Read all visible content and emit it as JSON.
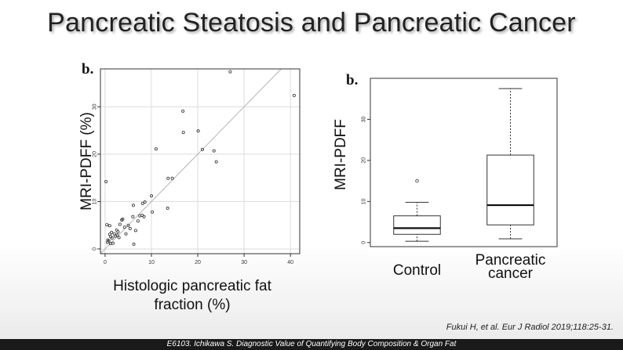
{
  "slide": {
    "title": "Pancreatic Steatosis and Pancreatic Cancer",
    "citation": "Fukui H, et al. Eur J Radiol 2019;118:25-31.",
    "footer": "E6103. Ichikawa S. Diagnostic Value of Quantifying  Body Composition & Organ Fat"
  },
  "chart_data": [
    {
      "type": "scatter",
      "panel_label": "b.",
      "xlabel": "Histologic pancreatic fat fraction (%)",
      "ylabel": "MRI-PDFF (%)",
      "xlim": [
        -1,
        42
      ],
      "ylim": [
        -1,
        38
      ],
      "xticks": [
        0,
        10,
        20,
        30,
        40
      ],
      "yticks": [
        0,
        10,
        20,
        30
      ],
      "grid": true,
      "identity_line": true,
      "points": [
        [
          0.2,
          14.2
        ],
        [
          0.4,
          5.1
        ],
        [
          0.6,
          1.9
        ],
        [
          0.5,
          1.4
        ],
        [
          0.8,
          1.7
        ],
        [
          1.0,
          4.9
        ],
        [
          1.0,
          3.1
        ],
        [
          1.2,
          2.6
        ],
        [
          1.2,
          1.1
        ],
        [
          1.4,
          3.5
        ],
        [
          1.5,
          2.3
        ],
        [
          1.7,
          1.2
        ],
        [
          2.0,
          3.2
        ],
        [
          2.2,
          2.7
        ],
        [
          2.5,
          4.0
        ],
        [
          2.6,
          2.9
        ],
        [
          2.8,
          3.6
        ],
        [
          3.0,
          2.4
        ],
        [
          3.2,
          5.2
        ],
        [
          3.6,
          6.1
        ],
        [
          3.8,
          6.3
        ],
        [
          4.2,
          4.6
        ],
        [
          4.5,
          3.2
        ],
        [
          5.0,
          5.0
        ],
        [
          5.4,
          4.3
        ],
        [
          6.0,
          6.8
        ],
        [
          6.1,
          9.2
        ],
        [
          6.2,
          1.0
        ],
        [
          6.6,
          3.9
        ],
        [
          7.1,
          5.9
        ],
        [
          7.5,
          7.0
        ],
        [
          8.0,
          7.1
        ],
        [
          8.1,
          9.6
        ],
        [
          8.4,
          6.8
        ],
        [
          8.6,
          9.9
        ],
        [
          10.0,
          11.2
        ],
        [
          10.2,
          7.8
        ],
        [
          11.0,
          21.1
        ],
        [
          13.5,
          8.6
        ],
        [
          13.6,
          14.9
        ],
        [
          14.5,
          14.9
        ],
        [
          16.8,
          29.1
        ],
        [
          16.9,
          24.6
        ],
        [
          20.1,
          24.9
        ],
        [
          21.0,
          21.0
        ],
        [
          23.5,
          20.7
        ],
        [
          24.0,
          18.4
        ],
        [
          27.0,
          37.4
        ],
        [
          40.8,
          32.4
        ]
      ]
    },
    {
      "type": "box",
      "panel_label": "b.",
      "ylabel": "MRI-PDFF",
      "ylim": [
        -1,
        40
      ],
      "yticks": [
        0,
        10,
        20,
        30
      ],
      "categories": [
        "Control",
        "Pancreatic cancer"
      ],
      "boxes": [
        {
          "whisker_low": 0.3,
          "q1": 2.0,
          "median": 3.5,
          "q3": 6.5,
          "whisker_high": 9.8,
          "outliers": [
            15.0
          ]
        },
        {
          "whisker_low": 0.9,
          "q1": 4.3,
          "median": 9.1,
          "q3": 21.3,
          "whisker_high": 37.5,
          "outliers": []
        }
      ]
    }
  ]
}
